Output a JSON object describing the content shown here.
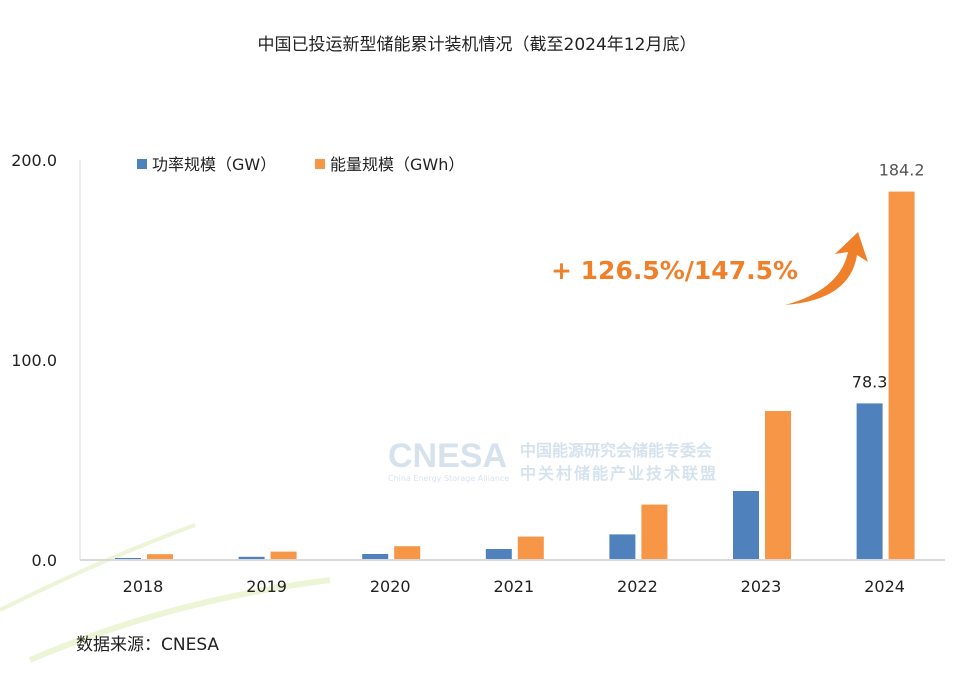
{
  "chart_data": {
    "type": "bar",
    "title": "中国已投运新型储能累计装机情况（截至2024年12月底）",
    "categories": [
      "2018",
      "2019",
      "2020",
      "2021",
      "2022",
      "2023",
      "2024"
    ],
    "series": [
      {
        "name": "功率规模（GW）",
        "color": "#4f81bd",
        "values": [
          1.0,
          1.6,
          3.0,
          5.5,
          12.8,
          34.5,
          78.3
        ]
      },
      {
        "name": "能量规模（GWh）",
        "color": "#f79646",
        "values": [
          2.9,
          4.2,
          6.9,
          11.7,
          27.7,
          74.5,
          184.2
        ]
      }
    ],
    "data_labels": {
      "power_2024": "78.3",
      "energy_2024": "184.2"
    },
    "yticks": [
      "0.0",
      "100.0",
      "200.0"
    ],
    "ylim": [
      0,
      200
    ],
    "legend": "top-left",
    "grid": false,
    "annotation": "+ 126.5%/147.5%",
    "annotation_color": "#f07f2a"
  },
  "watermark": {
    "logo": "CNESA",
    "line1": "中国能源研究会储能专委会",
    "line2": "中关村储能产业技术联盟",
    "sub": "China Energy Storage Alliance"
  },
  "source": "数据来源：CNESA"
}
